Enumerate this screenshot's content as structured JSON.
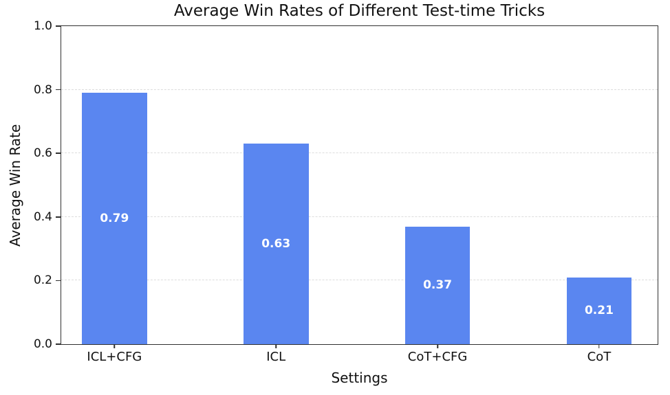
{
  "chart_data": {
    "type": "bar",
    "title": "Average Win Rates of Different Test-time Tricks",
    "xlabel": "Settings",
    "ylabel": "Average Win Rate",
    "categories": [
      "ICL+CFG",
      "ICL",
      "CoT+CFG",
      "CoT"
    ],
    "values": [
      0.79,
      0.63,
      0.37,
      0.21
    ],
    "bar_labels": [
      "0.79",
      "0.63",
      "0.37",
      "0.21"
    ],
    "ylim": [
      0.0,
      1.0
    ],
    "yticks": [
      0.0,
      0.2,
      0.4,
      0.6,
      0.8,
      1.0
    ],
    "ytick_labels": [
      "0.0",
      "0.2",
      "0.4",
      "0.6",
      "0.8",
      "1.0"
    ],
    "grid": "horizontal-dashed",
    "legend": "none",
    "colors": {
      "bar": "#5A86F0",
      "bar_label_text": "#FFFFFF",
      "grid": "#DCDCDC",
      "axis": "#2F2F2F",
      "text": "#111111",
      "background": "#FFFFFF"
    }
  }
}
